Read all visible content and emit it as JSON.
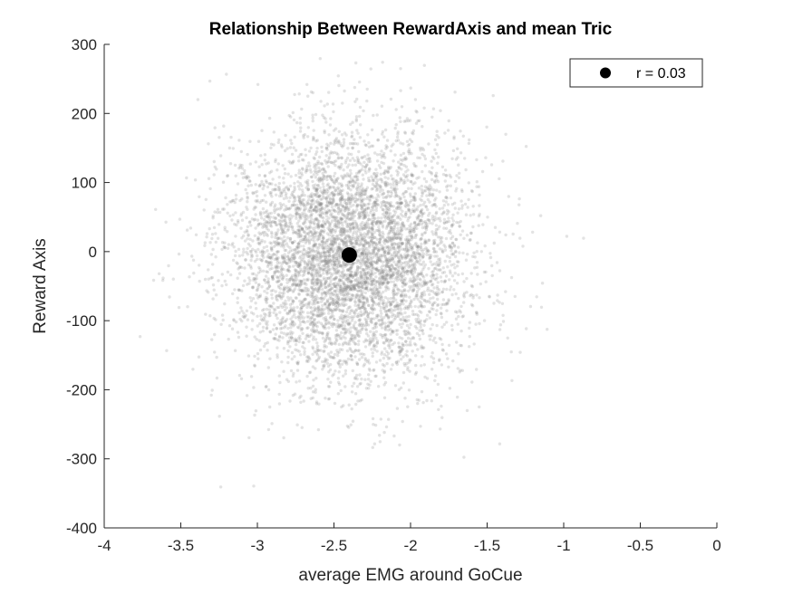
{
  "chart_data": {
    "type": "scatter",
    "title": "Relationship Between RewardAxis and mean Tric",
    "xlabel": "average EMG around GoCue",
    "ylabel": "Reward Axis",
    "xlim": [
      -4,
      0
    ],
    "ylim": [
      -400,
      300
    ],
    "xticks": [
      -4,
      -3.5,
      -3,
      -2.5,
      -2,
      -1.5,
      -1,
      -0.5,
      0
    ],
    "xtick_labels": [
      "-4",
      "-3.5",
      "-3",
      "-2.5",
      "-2",
      "-1.5",
      "-1",
      "-0.5",
      "0"
    ],
    "yticks": [
      -400,
      -300,
      -200,
      -100,
      0,
      100,
      200,
      300
    ],
    "ytick_labels": [
      "-400",
      "-300",
      "-200",
      "-100",
      "0",
      "100",
      "200",
      "300"
    ],
    "grid": false,
    "legend": {
      "placement": "top-right",
      "entries": [
        "r = 0.03"
      ]
    },
    "cloud": {
      "count": 6000,
      "x_mean": -2.4,
      "x_sd": 0.38,
      "y_mean": -5,
      "y_sd": 88,
      "color": "#808080",
      "opacity": 0.22
    },
    "mean_point": {
      "x": -2.4,
      "y": -5,
      "color": "#000000"
    },
    "correlation": 0.03
  }
}
